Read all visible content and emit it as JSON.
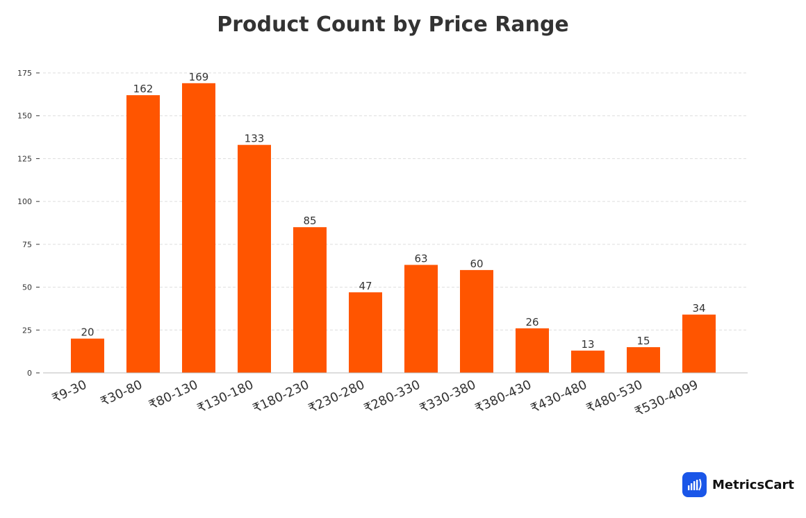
{
  "chart_data": {
    "type": "bar",
    "title": "Product Count by Price Range",
    "xlabel": "",
    "ylabel": "",
    "categories": [
      "₹9-30",
      "₹30-80",
      "₹80-130",
      "₹130-180",
      "₹180-230",
      "₹230-280",
      "₹280-330",
      "₹330-380",
      "₹380-430",
      "₹430-480",
      "₹480-530",
      "₹530-4099"
    ],
    "values": [
      20,
      162,
      169,
      133,
      85,
      47,
      63,
      60,
      26,
      13,
      15,
      34
    ],
    "ylim": [
      0,
      175
    ],
    "yticks": [
      0,
      25,
      50,
      75,
      100,
      125,
      150,
      175
    ],
    "grid": true,
    "legend": "none",
    "bar_color": "#FF5500"
  },
  "brand": {
    "name": "MetricsCart",
    "logo_color": "#1a56e8",
    "icon": "bar-chart-icon"
  }
}
